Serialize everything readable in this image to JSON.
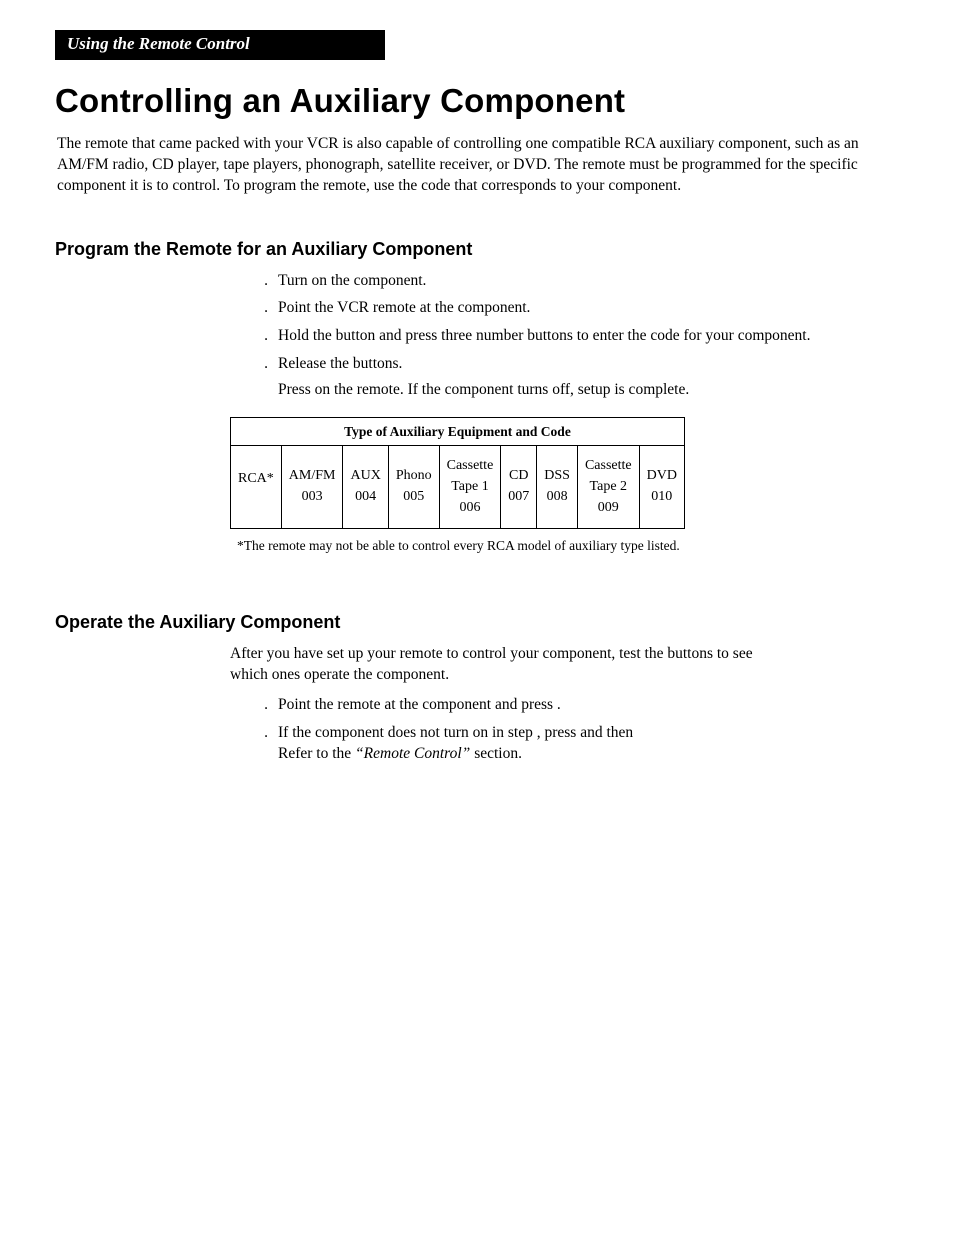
{
  "header": {
    "banner": "Using the Remote Control"
  },
  "title": "Controlling an Auxiliary Component",
  "intro": "The remote that came packed with your VCR is also capable of controlling one compatible RCA auxiliary component, such as an AM/FM radio, CD player, tape players, phonograph, satellite receiver, or DVD. The remote must be programmed for the specific component it is to control. To program the remote, use the code that corresponds to your component.",
  "section1": {
    "title": "Program the Remote for an Auxiliary Component",
    "steps": [
      "Turn on the component.",
      "Point the VCR remote at the component.",
      "Hold the        button and press three number buttons to enter the code for your component.",
      "Release the buttons."
    ],
    "note_prefix": "Press ",
    "note_rest": "      on the remote.  If the component turns off, setup is complete."
  },
  "table": {
    "caption": "Type of Auxiliary Equipment and Code",
    "cells": {
      "c0": "RCA*",
      "c1a": "AM/FM",
      "c1b": "003",
      "c2a": "AUX",
      "c2b": "004",
      "c3a": "Phono",
      "c3b": "005",
      "c4a": "Cassette",
      "c4b": "Tape 1",
      "c4c": "006",
      "c5a": "CD",
      "c5b": "007",
      "c6a": "DSS",
      "c6b": "008",
      "c7a": "Cassette",
      "c7b": "Tape 2",
      "c7c": "009",
      "c8a": "DVD",
      "c8b": "010"
    },
    "footnote": "*The remote may not be able to control every RCA model of auxiliary type listed."
  },
  "section2": {
    "title": "Operate the Auxiliary Component",
    "intro": "After you have set up your remote to control your component, test the buttons to see which ones operate the component.",
    "step1": "Point the remote at the component and press        .",
    "step2a": "If the component does not turn on in step   , press        and then",
    "step2b_prefix": "Refer to the ",
    "step2b_italic": "“Remote Control”",
    "step2b_suffix": " section."
  }
}
